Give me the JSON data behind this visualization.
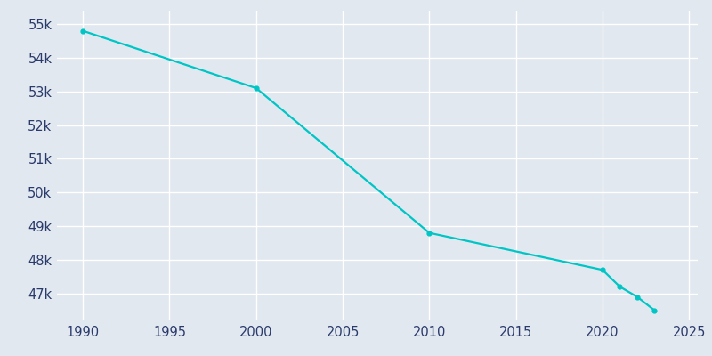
{
  "years": [
    1990,
    2000,
    2010,
    2020,
    2021,
    2022,
    2023
  ],
  "population": [
    54800,
    53100,
    48800,
    47700,
    47200,
    46900,
    46500
  ],
  "line_color": "#00C5C5",
  "marker": "o",
  "marker_size": 3.5,
  "line_width": 1.6,
  "bg_color": "#E1E8F0",
  "grid_color": "#FFFFFF",
  "tick_color": "#2A3A6B",
  "ylim": [
    46200,
    55400
  ],
  "yticks": [
    47000,
    48000,
    49000,
    50000,
    51000,
    52000,
    53000,
    54000,
    55000
  ],
  "ytick_labels": [
    "47k",
    "48k",
    "49k",
    "50k",
    "51k",
    "52k",
    "53k",
    "54k",
    "55k"
  ],
  "xticks": [
    1990,
    1995,
    2000,
    2005,
    2010,
    2015,
    2020,
    2025
  ],
  "xlim": [
    1988.5,
    2025.5
  ]
}
